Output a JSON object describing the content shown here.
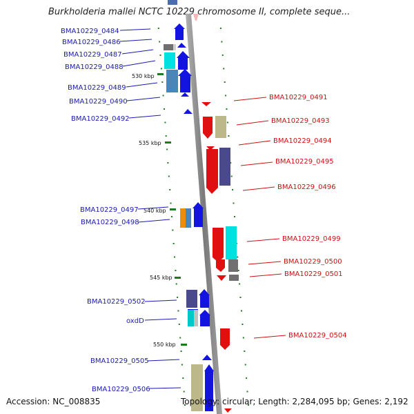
{
  "title": "Burkholderia mallei NCTC 10229 chromosome II, complete seque...",
  "accession_label": "Accession: NC_008835",
  "topology_label": "Topology: circular; Length: 2,284,095 bp; Genes: 2,192",
  "colors": {
    "forward_label": "#1a1ab0",
    "reverse_label": "#cc1111",
    "backbone": "#8a8a8a",
    "kbp_tick": "#1e7a1e"
  },
  "kbp_ticks": [
    "530 kbp",
    "535 kbp",
    "540 kbp",
    "545 kbp",
    "550 kbp"
  ],
  "forward_genes": [
    "BMA10229_0484",
    "BMA10229_0486",
    "BMA10229_0487",
    "BMA10229_0488",
    "BMA10229_0489",
    "BMA10229_0490",
    "BMA10229_0492",
    "BMA10229_0497",
    "BMA10229_0498",
    "BMA10229_0502",
    "oxdD",
    "BMA10229_0505",
    "BMA10229_0506"
  ],
  "reverse_genes": [
    "BMA10229_0491",
    "BMA10229_0493",
    "BMA10229_0494",
    "BMA10229_0495",
    "BMA10229_0496",
    "BMA10229_0499",
    "BMA10229_0500",
    "BMA10229_0501",
    "BMA10229_0504"
  ]
}
